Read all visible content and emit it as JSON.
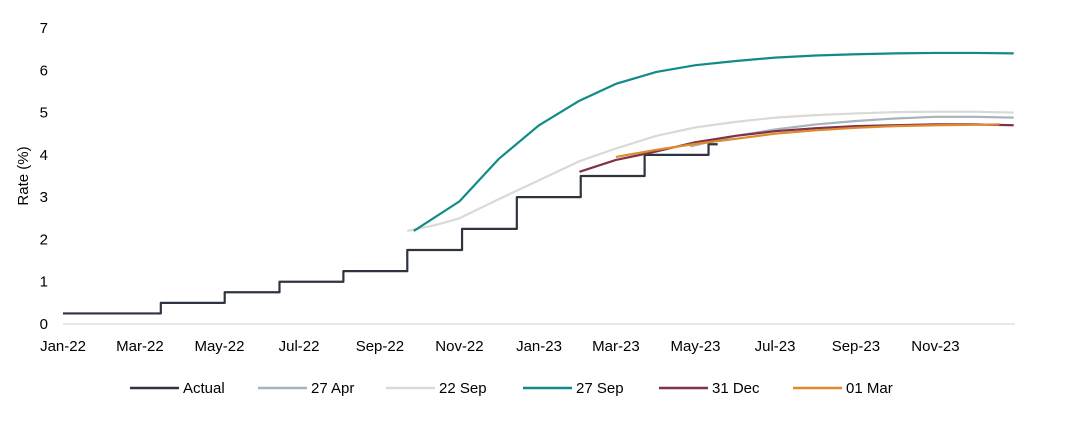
{
  "chart_data": {
    "type": "line",
    "ylabel": "Rate (%)",
    "xlabel": "",
    "ylim": [
      0,
      7
    ],
    "yticks": [
      "0",
      "1",
      "2",
      "3",
      "4",
      "5",
      "6",
      "7"
    ],
    "x_tick_labels": [
      "Jan-22",
      "Mar-22",
      "May-22",
      "Jul-22",
      "Sep-22",
      "Nov-22",
      "Jan-23",
      "Mar-23",
      "May-23",
      "Jul-23",
      "Sep-23",
      "Nov-23"
    ],
    "grid": false,
    "legend_position": "bottom",
    "series": [
      {
        "name": "Actual",
        "color": "#2e3440",
        "step": true,
        "points": [
          [
            "2022-01-01",
            0.25
          ],
          [
            "2022-03-17",
            0.5
          ],
          [
            "2022-05-05",
            0.75
          ],
          [
            "2022-06-16",
            1.0
          ],
          [
            "2022-08-04",
            1.25
          ],
          [
            "2022-09-22",
            1.75
          ],
          [
            "2022-11-03",
            2.25
          ],
          [
            "2022-12-15",
            3.0
          ],
          [
            "2023-02-02",
            3.5
          ],
          [
            "2023-03-23",
            4.0
          ],
          [
            "2023-05-11",
            4.25
          ]
        ],
        "end": "2023-05-18"
      },
      {
        "name": "27 Apr",
        "color": "#a8b3bd",
        "points": [
          [
            "2023-04-27",
            4.2
          ],
          [
            "2023-06-01",
            4.45
          ],
          [
            "2023-07-01",
            4.6
          ],
          [
            "2023-08-01",
            4.72
          ],
          [
            "2023-09-01",
            4.8
          ],
          [
            "2023-10-01",
            4.86
          ],
          [
            "2023-11-01",
            4.9
          ],
          [
            "2023-12-01",
            4.9
          ],
          [
            "2023-12-31",
            4.88
          ]
        ]
      },
      {
        "name": "22 Sep",
        "color": "#d9d9d6",
        "points": [
          [
            "2022-09-22",
            2.2
          ],
          [
            "2022-10-15",
            2.35
          ],
          [
            "2022-11-01",
            2.5
          ],
          [
            "2022-12-01",
            2.95
          ],
          [
            "2023-01-01",
            3.4
          ],
          [
            "2023-02-01",
            3.85
          ],
          [
            "2023-03-01",
            4.15
          ],
          [
            "2023-04-01",
            4.45
          ],
          [
            "2023-05-01",
            4.65
          ],
          [
            "2023-06-01",
            4.78
          ],
          [
            "2023-07-01",
            4.88
          ],
          [
            "2023-08-01",
            4.94
          ],
          [
            "2023-09-01",
            4.98
          ],
          [
            "2023-10-01",
            5.01
          ],
          [
            "2023-11-01",
            5.02
          ],
          [
            "2023-12-01",
            5.02
          ],
          [
            "2023-12-31",
            5.0
          ]
        ]
      },
      {
        "name": "27 Sep",
        "color": "#128a8a",
        "points": [
          [
            "2022-09-27",
            2.2
          ],
          [
            "2022-11-01",
            2.9
          ],
          [
            "2022-12-01",
            3.9
          ],
          [
            "2023-01-01",
            4.7
          ],
          [
            "2023-02-01",
            5.28
          ],
          [
            "2023-03-01",
            5.68
          ],
          [
            "2023-04-01",
            5.96
          ],
          [
            "2023-05-01",
            6.12
          ],
          [
            "2023-06-01",
            6.22
          ],
          [
            "2023-07-01",
            6.3
          ],
          [
            "2023-08-01",
            6.35
          ],
          [
            "2023-09-01",
            6.38
          ],
          [
            "2023-10-01",
            6.4
          ],
          [
            "2023-11-01",
            6.41
          ],
          [
            "2023-12-01",
            6.41
          ],
          [
            "2023-12-31",
            6.4
          ]
        ]
      },
      {
        "name": "31 Dec",
        "color": "#7d3447",
        "points": [
          [
            "2023-02-01",
            3.6
          ],
          [
            "2023-03-01",
            3.88
          ],
          [
            "2023-04-01",
            4.08
          ],
          [
            "2023-05-01",
            4.3
          ],
          [
            "2023-06-01",
            4.45
          ],
          [
            "2023-07-01",
            4.56
          ],
          [
            "2023-08-01",
            4.63
          ],
          [
            "2023-09-01",
            4.68
          ],
          [
            "2023-10-01",
            4.7
          ],
          [
            "2023-11-01",
            4.72
          ],
          [
            "2023-12-01",
            4.72
          ],
          [
            "2023-12-31",
            4.7
          ]
        ]
      },
      {
        "name": "01 Mar",
        "color": "#e0892e",
        "points": [
          [
            "2023-03-01",
            3.95
          ],
          [
            "2023-04-01",
            4.12
          ],
          [
            "2023-05-01",
            4.26
          ],
          [
            "2023-06-01",
            4.38
          ],
          [
            "2023-07-01",
            4.5
          ],
          [
            "2023-08-01",
            4.58
          ],
          [
            "2023-09-01",
            4.64
          ],
          [
            "2023-10-01",
            4.68
          ],
          [
            "2023-11-01",
            4.7
          ],
          [
            "2023-12-01",
            4.71
          ],
          [
            "2023-12-20",
            4.72
          ]
        ]
      }
    ]
  }
}
